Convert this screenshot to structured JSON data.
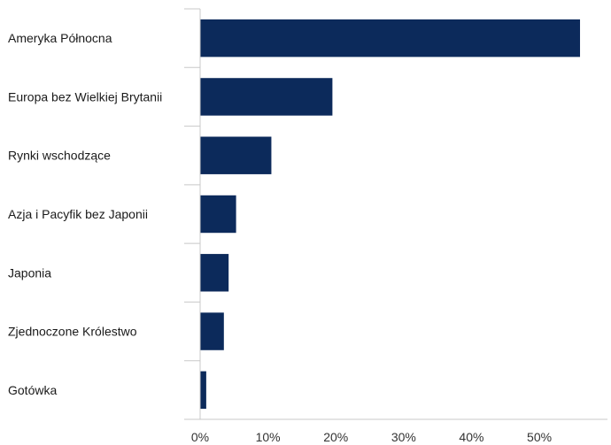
{
  "chart_data": {
    "type": "bar",
    "orientation": "horizontal",
    "title": "",
    "xlabel": "",
    "ylabel": "",
    "categories": [
      "Ameryka Północna",
      "Europa bez Wielkiej Brytanii",
      "Rynki wschodzące",
      "Azja i Pacyfik bez Japonii",
      "Japonia",
      "Zjednoczone Królestwo",
      "Gotówka"
    ],
    "values": [
      56.0,
      19.5,
      10.5,
      5.3,
      4.2,
      3.5,
      0.9
    ],
    "xlim": [
      0,
      59
    ],
    "x_ticks": [
      0,
      10,
      20,
      30,
      40,
      50
    ],
    "x_tick_labels": [
      "0%",
      "10%",
      "20%",
      "30%",
      "40%",
      "50%"
    ],
    "grid": false,
    "legend": "none",
    "bar_color": "#0c2a5b",
    "axis_color": "#c8c8c8"
  }
}
